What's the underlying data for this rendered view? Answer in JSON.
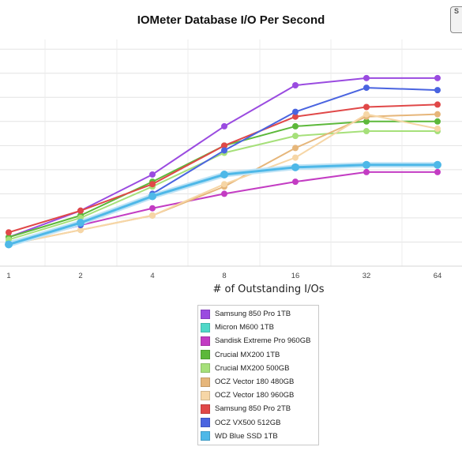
{
  "page": {
    "title": "IOMeter Database I/O Per Second",
    "logo_text": "S"
  },
  "chart_data": {
    "type": "line",
    "title": "IOMeter Database I/O Per Second",
    "xlabel": "# of Outstanding I/Os",
    "ylabel": "",
    "x": [
      1,
      2,
      4,
      8,
      16,
      32,
      64
    ],
    "xscale": "log2",
    "ylim": [
      0,
      9.4
    ],
    "yticks": [
      1,
      2,
      3,
      4,
      5,
      6,
      7,
      8,
      9
    ],
    "grid": true,
    "legend_position": "bottom-center",
    "series": [
      {
        "name": "Samsung 850 Pro 1TB",
        "color": "#9a4be0",
        "values": [
          1.2,
          2.3,
          3.8,
          5.8,
          7.5,
          7.8,
          7.8
        ]
      },
      {
        "name": "Micron M600 1TB",
        "color": "#4fd8c8",
        "values": [
          1.0,
          1.8,
          2.9,
          3.8,
          4.1,
          4.2,
          4.2
        ]
      },
      {
        "name": "Sandisk Extreme Pro 960GB",
        "color": "#c33cc3",
        "values": [
          0.9,
          1.7,
          2.4,
          3.0,
          3.5,
          3.9,
          3.9
        ]
      },
      {
        "name": "Crucial MX200 1TB",
        "color": "#5cb83a",
        "values": [
          1.2,
          2.1,
          3.5,
          5.0,
          5.8,
          6.0,
          6.0
        ]
      },
      {
        "name": "Crucial MX200 500GB",
        "color": "#a6e07a",
        "values": [
          1.1,
          2.0,
          3.3,
          4.7,
          5.4,
          5.6,
          5.6
        ]
      },
      {
        "name": "OCZ Vector 180 480GB",
        "color": "#e6b67a",
        "values": [
          0.9,
          1.5,
          2.1,
          3.3,
          4.9,
          6.2,
          6.3
        ]
      },
      {
        "name": "OCZ Vector 180 960GB",
        "color": "#f6d6a6",
        "values": [
          0.9,
          1.5,
          2.1,
          3.4,
          4.5,
          6.3,
          5.7
        ]
      },
      {
        "name": "Samsung 850 Pro 2TB",
        "color": "#e04848",
        "values": [
          1.4,
          2.3,
          3.4,
          5.0,
          6.2,
          6.6,
          6.7
        ]
      },
      {
        "name": "OCZ VX500 512GB",
        "color": "#4a64e0",
        "values": [
          0.9,
          1.7,
          3.0,
          4.8,
          6.4,
          7.4,
          7.3
        ]
      },
      {
        "name": "WD Blue SSD 1TB",
        "color": "#4eb8e8",
        "values": [
          0.9,
          1.8,
          2.9,
          3.8,
          4.1,
          4.2,
          4.2
        ],
        "emphasis": true
      }
    ]
  }
}
